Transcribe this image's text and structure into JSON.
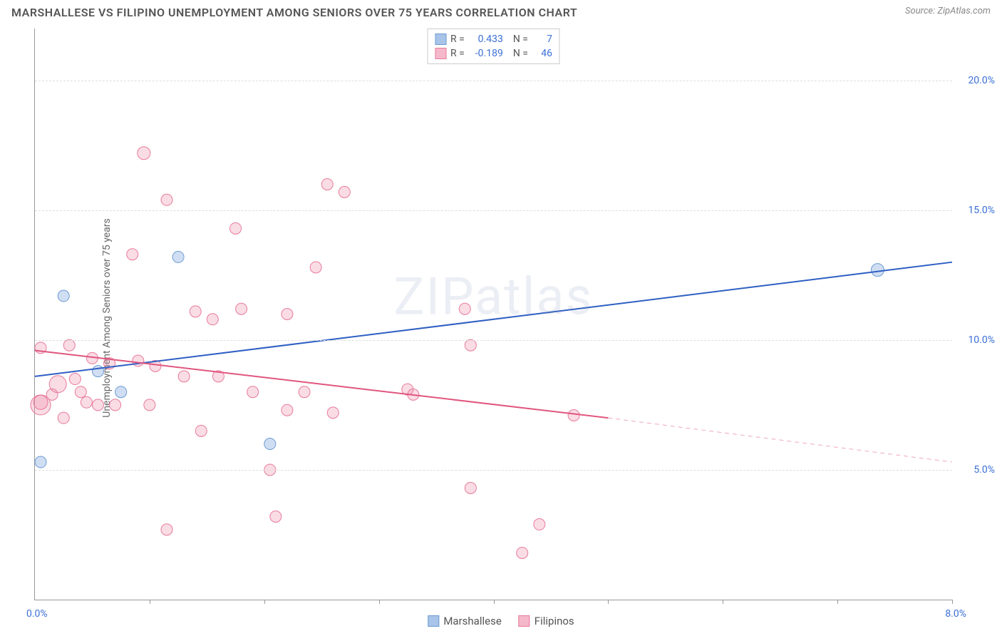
{
  "title": "MARSHALLESE VS FILIPINO UNEMPLOYMENT AMONG SENIORS OVER 75 YEARS CORRELATION CHART",
  "source": "Source: ZipAtlas.com",
  "watermark": "ZIPatlas",
  "y_axis_label": "Unemployment Among Seniors over 75 years",
  "chart": {
    "type": "scatter",
    "xlim": [
      0,
      8
    ],
    "ylim": [
      0,
      22
    ],
    "x_tick_labels": {
      "left": "0.0%",
      "right": "8.0%"
    },
    "x_tick_positions": [
      1,
      2,
      3,
      4,
      5,
      6,
      7,
      8
    ],
    "y_gridlines": [
      5,
      10,
      15,
      20
    ],
    "y_tick_labels": [
      "5.0%",
      "10.0%",
      "15.0%",
      "20.0%"
    ],
    "background_color": "#ffffff",
    "grid_color": "#dddddd",
    "axis_color": "#999999",
    "tick_label_color": "#3b6fd6",
    "series": [
      {
        "name": "Marshallese",
        "color_fill": "rgba(120,160,220,0.35)",
        "color_stroke": "#6b9bd1",
        "swatch_fill": "#a8c4e8",
        "swatch_border": "#6b9bd1",
        "marker_radius": 8,
        "stats": {
          "R": "0.433",
          "N": "7"
        },
        "trend": {
          "x1": 0,
          "y1": 8.6,
          "x2": 8,
          "y2": 13.0,
          "color": "#2f5fc4",
          "width": 2
        },
        "points": [
          {
            "x": 0.25,
            "y": 11.7,
            "r": 8
          },
          {
            "x": 0.05,
            "y": 5.3,
            "r": 8
          },
          {
            "x": 0.55,
            "y": 8.8,
            "r": 8
          },
          {
            "x": 0.75,
            "y": 8.0,
            "r": 8
          },
          {
            "x": 1.25,
            "y": 13.2,
            "r": 8
          },
          {
            "x": 2.05,
            "y": 6.0,
            "r": 8
          },
          {
            "x": 7.35,
            "y": 12.7,
            "r": 9
          }
        ]
      },
      {
        "name": "Filipinos",
        "color_fill": "rgba(240,140,170,0.30)",
        "color_stroke": "#e77a9a",
        "swatch_fill": "#f5b8cb",
        "swatch_border": "#e77a9a",
        "marker_radius": 8,
        "stats": {
          "R": "-0.189",
          "N": "46"
        },
        "trend_solid": {
          "x1": 0,
          "y1": 9.6,
          "x2": 5.0,
          "y2": 7.0,
          "color": "#e0567f",
          "width": 2
        },
        "trend_dashed": {
          "x1": 5.0,
          "y1": 7.0,
          "x2": 8.0,
          "y2": 5.3,
          "color": "#f0a8bb",
          "width": 1,
          "dash": "6,5"
        },
        "points": [
          {
            "x": 0.05,
            "y": 9.7,
            "r": 8
          },
          {
            "x": 0.05,
            "y": 7.5,
            "r": 14
          },
          {
            "x": 0.05,
            "y": 7.6,
            "r": 10
          },
          {
            "x": 0.2,
            "y": 8.3,
            "r": 12
          },
          {
            "x": 0.3,
            "y": 9.8,
            "r": 8
          },
          {
            "x": 0.4,
            "y": 8.0,
            "r": 8
          },
          {
            "x": 0.55,
            "y": 7.5,
            "r": 8
          },
          {
            "x": 0.45,
            "y": 7.6,
            "r": 8
          },
          {
            "x": 0.65,
            "y": 9.1,
            "r": 8
          },
          {
            "x": 0.7,
            "y": 7.5,
            "r": 8
          },
          {
            "x": 0.85,
            "y": 13.3,
            "r": 8
          },
          {
            "x": 0.95,
            "y": 17.2,
            "r": 9
          },
          {
            "x": 0.9,
            "y": 9.2,
            "r": 8
          },
          {
            "x": 1.0,
            "y": 7.5,
            "r": 8
          },
          {
            "x": 1.15,
            "y": 2.7,
            "r": 8
          },
          {
            "x": 1.15,
            "y": 15.4,
            "r": 8
          },
          {
            "x": 1.3,
            "y": 8.6,
            "r": 8
          },
          {
            "x": 1.4,
            "y": 11.1,
            "r": 8
          },
          {
            "x": 1.45,
            "y": 6.5,
            "r": 8
          },
          {
            "x": 1.55,
            "y": 10.8,
            "r": 8
          },
          {
            "x": 1.6,
            "y": 8.6,
            "r": 8
          },
          {
            "x": 1.75,
            "y": 14.3,
            "r": 8
          },
          {
            "x": 1.8,
            "y": 11.2,
            "r": 8
          },
          {
            "x": 2.05,
            "y": 5.0,
            "r": 8
          },
          {
            "x": 2.1,
            "y": 3.2,
            "r": 8
          },
          {
            "x": 2.2,
            "y": 7.3,
            "r": 8
          },
          {
            "x": 2.2,
            "y": 11.0,
            "r": 8
          },
          {
            "x": 2.35,
            "y": 8.0,
            "r": 8
          },
          {
            "x": 2.45,
            "y": 12.8,
            "r": 8
          },
          {
            "x": 2.55,
            "y": 16.0,
            "r": 8
          },
          {
            "x": 2.6,
            "y": 7.2,
            "r": 8
          },
          {
            "x": 2.7,
            "y": 15.7,
            "r": 8
          },
          {
            "x": 3.25,
            "y": 8.1,
            "r": 8
          },
          {
            "x": 3.3,
            "y": 7.9,
            "r": 8
          },
          {
            "x": 3.75,
            "y": 11.2,
            "r": 8
          },
          {
            "x": 3.8,
            "y": 4.3,
            "r": 8
          },
          {
            "x": 3.8,
            "y": 9.8,
            "r": 8
          },
          {
            "x": 4.25,
            "y": 1.8,
            "r": 8
          },
          {
            "x": 4.4,
            "y": 2.9,
            "r": 8
          },
          {
            "x": 4.7,
            "y": 7.1,
            "r": 8
          },
          {
            "x": 0.15,
            "y": 7.9,
            "r": 8
          },
          {
            "x": 0.35,
            "y": 8.5,
            "r": 8
          },
          {
            "x": 0.5,
            "y": 9.3,
            "r": 8
          },
          {
            "x": 1.05,
            "y": 9.0,
            "r": 8
          },
          {
            "x": 1.9,
            "y": 8.0,
            "r": 8
          },
          {
            "x": 0.25,
            "y": 7.0,
            "r": 8
          }
        ]
      }
    ]
  },
  "legend_labels": {
    "r_label": "R =",
    "n_label": "N ="
  }
}
